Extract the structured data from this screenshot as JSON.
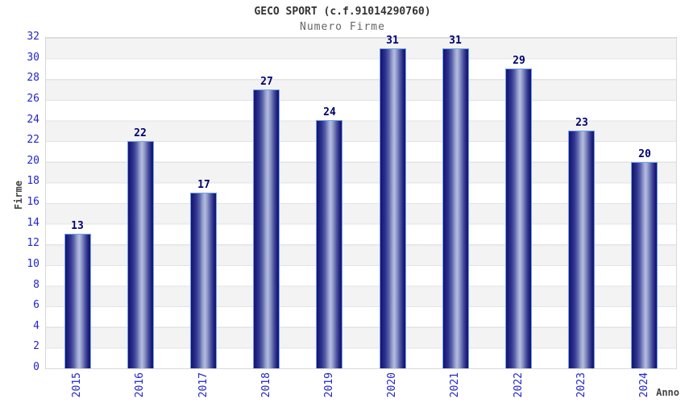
{
  "header": {
    "title": "GECO SPORT (c.f.91014290760)",
    "subtitle": "Numero Firme"
  },
  "chart_data": {
    "type": "bar",
    "title": "GECO SPORT (c.f.91014290760)",
    "subtitle": "Numero Firme",
    "categories": [
      "2015",
      "2016",
      "2017",
      "2018",
      "2019",
      "2020",
      "2021",
      "2022",
      "2023",
      "2024"
    ],
    "values": [
      13,
      22,
      17,
      27,
      24,
      31,
      31,
      29,
      23,
      20
    ],
    "xlabel": "Anno",
    "ylabel": "Firme",
    "ylim": [
      0,
      32
    ],
    "ytick_step": 2,
    "grid": "horizontal-bands-alternating",
    "legend": false,
    "colors": {
      "bar_dark": "#15156e",
      "bar_light": "#b4bce0",
      "bar_border": "#70a2ef",
      "axis_tick_label": "#2424cc",
      "value_label": "#000070",
      "title": "#333333",
      "subtitle": "#666666",
      "band_gray": "#f3f3f3",
      "band_line": "#e3e3e3",
      "plot_border": "#d9d9d9"
    }
  }
}
